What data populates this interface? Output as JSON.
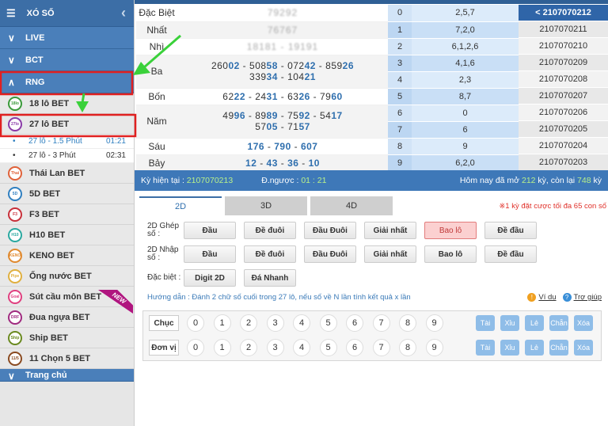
{
  "sidebar": {
    "title": "XÓ SỐ",
    "categories": [
      "LIVE",
      "BCT",
      "RNG"
    ],
    "items_top": [
      {
        "label": "18 lô BET",
        "icon": "18lo",
        "color": "#3a9a3a"
      },
      {
        "label": "27 lô BET",
        "icon": "27lo",
        "color": "#8a3aa8"
      }
    ],
    "subitems": [
      {
        "label": "27 lô - 1.5 Phút",
        "time": "01:21"
      },
      {
        "label": "27 lô - 3 Phút",
        "time": "02:31"
      }
    ],
    "items": [
      {
        "label": "Thái Lan BET",
        "icon": "Thai",
        "color": "#e0623a"
      },
      {
        "label": "5D BET",
        "icon": "5D",
        "color": "#2f7fc0"
      },
      {
        "label": "F3 BET",
        "icon": "F3",
        "color": "#c8303a"
      },
      {
        "label": "H10 BET",
        "icon": "H10",
        "color": "#2aa8a0"
      },
      {
        "label": "KENO BET",
        "icon": "KENO",
        "color": "#e08a30"
      },
      {
        "label": "Ống nước BET",
        "icon": "Pipe",
        "color": "#e0b040"
      },
      {
        "label": "Sút cầu môn BET",
        "icon": "Goal",
        "color": "#e04080"
      },
      {
        "label": "Đua ngựa BET",
        "icon": "DRF",
        "color": "#a02a80"
      },
      {
        "label": "Ship BET",
        "icon": "Ship",
        "color": "#6a8a20"
      },
      {
        "label": "11 Chọn 5 BET",
        "icon": "11/5",
        "color": "#8a4a20"
      }
    ],
    "new_badge": "NEW",
    "bottom": "Trang chủ"
  },
  "results": [
    {
      "label": "Đặc Biệt",
      "value": "79292",
      "blur": true
    },
    {
      "label": "Nhất",
      "value": "76767",
      "blur": true
    },
    {
      "label": "Nhì",
      "value": "18181 - 19191",
      "blur": true
    },
    {
      "label": "Ba",
      "lines": [
        [
          "260",
          "02",
          "508",
          "58",
          "072",
          "42",
          "859",
          "26"
        ],
        [
          "339",
          "34",
          "104",
          "21"
        ]
      ]
    },
    {
      "label": "Bốn",
      "lines": [
        [
          "62",
          "22",
          "24",
          "31",
          "63",
          "26",
          "79",
          "60"
        ]
      ]
    },
    {
      "label": "Năm",
      "lines": [
        [
          "49",
          "96",
          "89",
          "89",
          "75",
          "92",
          "54",
          "17"
        ],
        [
          "57",
          "05",
          "71",
          "57"
        ]
      ]
    },
    {
      "label": "Sáu",
      "lines": [
        [
          "",
          "176",
          "",
          "790",
          "",
          "607"
        ]
      ]
    },
    {
      "label": "Bảy",
      "lines": [
        [
          "",
          "12",
          "",
          "43",
          "",
          "36",
          "",
          "10"
        ]
      ]
    }
  ],
  "digits": [
    [
      "0",
      "2,5,7"
    ],
    [
      "1",
      "7,2,0"
    ],
    [
      "2",
      "6,1,2,6"
    ],
    [
      "3",
      "4,1,6"
    ],
    [
      "4",
      "2,3"
    ],
    [
      "5",
      "8,7"
    ],
    [
      "6",
      "0"
    ],
    [
      "7",
      "6"
    ],
    [
      "8",
      "9"
    ],
    [
      "9",
      "6,2,0"
    ]
  ],
  "history": [
    "< 2107070212",
    "2107070211",
    "2107070210",
    "2107070209",
    "2107070208",
    "2107070207",
    "2107070206",
    "2107070205",
    "2107070204",
    "2107070203"
  ],
  "info": {
    "current_label": "Kỳ hiện tại  :",
    "current": "2107070213",
    "countdown_label": "Đ.ngược :",
    "countdown": "01 : 21",
    "today_a": "Hôm nay đã mở ",
    "opened": "212",
    "today_b": " kỳ, còn lại ",
    "remaining": "748",
    "today_c": " kỳ"
  },
  "tabs": [
    "2D",
    "3D",
    "4D"
  ],
  "note": "※1 kỳ đặt cược tối đa 65 con số",
  "bet_rows": [
    {
      "label": "2D Ghép số :",
      "buttons": [
        "Đầu",
        "Đề đuôi",
        "Đầu Đuôi",
        "Giải nhất",
        "Bao lô",
        "Đề đầu"
      ],
      "active": 4
    },
    {
      "label": "2D Nhập số :",
      "buttons": [
        "Đầu",
        "Đề đuôi",
        "Đầu Đuôi",
        "Giải nhất",
        "Bao lô",
        "Đề đầu"
      ],
      "active": -1
    },
    {
      "label": "Đặc biệt :",
      "buttons": [
        "Digit 2D",
        "Đá Nhanh"
      ],
      "active": -1
    }
  ],
  "guide": "Hướng dẫn : Đánh 2 chữ số cuối trong 27 lô, nếu số về N lần tính kết quả x lần",
  "example": "Ví dụ",
  "help": "Trợ giúp",
  "picker": {
    "rows": [
      "Chục",
      "Đơn vị"
    ],
    "numbers": [
      "0",
      "1",
      "2",
      "3",
      "4",
      "5",
      "6",
      "7",
      "8",
      "9"
    ],
    "quick": [
      "Tài",
      "Xỉu",
      "Lẻ",
      "Chẵn",
      "Xóa"
    ]
  },
  "colors": {
    "primary": "#3c6ea6",
    "highlight": "#2f6fae",
    "annotation_arrow": "#3ad13a",
    "annotation_box": "#e02020"
  }
}
